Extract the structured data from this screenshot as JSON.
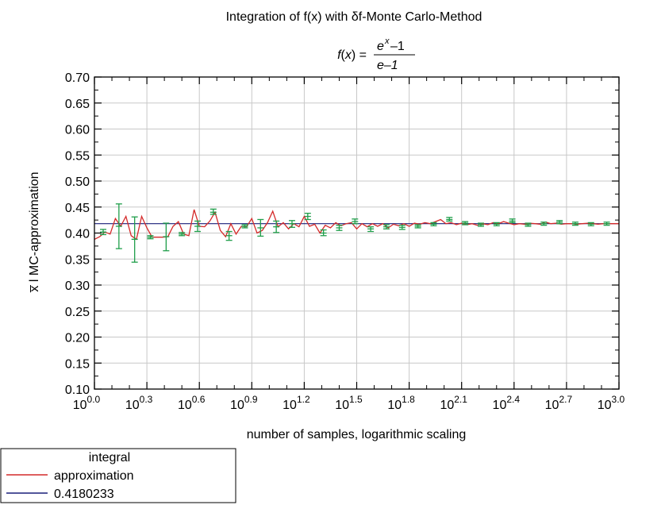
{
  "chart_data": {
    "type": "line",
    "title": "Integration of f(x) with δf-Monte Carlo-Method",
    "formula": {
      "lhs": "f(x) = ",
      "numerator_base": "e",
      "numerator_exp": "x",
      "numerator_tail": "–1",
      "denominator": "e–1"
    },
    "xlabel": "number of samples, logarithmic scaling",
    "ylabel": "x̅ l MC-approximation",
    "x_scale": "log10",
    "xlim": [
      1,
      1000
    ],
    "ylim": [
      0.1,
      0.7
    ],
    "x_tick_exponents": [
      "0.0",
      "0.3",
      "0.6",
      "0.9",
      "1.2",
      "1.5",
      "1.8",
      "2.1",
      "2.4",
      "2.7",
      "3.0"
    ],
    "x_tick_base": "10",
    "y_ticks": [
      "0.10",
      "0.15",
      "0.20",
      "0.25",
      "0.30",
      "0.35",
      "0.40",
      "0.45",
      "0.50",
      "0.55",
      "0.60",
      "0.65",
      "0.70"
    ],
    "grid": true,
    "legend_position": "below-left",
    "legend": {
      "title": "integral",
      "entries": [
        {
          "label": "approximation",
          "color": "#d42a2a"
        },
        {
          "label": "0.4180233",
          "color": "#1a1f7a"
        }
      ]
    },
    "reference_value": 0.4180233,
    "colors": {
      "approximation": "#d42a2a",
      "reference": "#1a1f7a",
      "error_bars": "#1f9e4a"
    },
    "series": [
      {
        "name": "approximation",
        "log10_x": [
          0.0,
          0.03,
          0.06,
          0.09,
          0.12,
          0.15,
          0.18,
          0.21,
          0.24,
          0.27,
          0.3,
          0.33,
          0.36,
          0.39,
          0.42,
          0.45,
          0.48,
          0.51,
          0.54,
          0.57,
          0.6,
          0.63,
          0.66,
          0.69,
          0.72,
          0.75,
          0.78,
          0.81,
          0.84,
          0.87,
          0.9,
          0.93,
          0.96,
          0.99,
          1.02,
          1.05,
          1.08,
          1.11,
          1.14,
          1.17,
          1.2,
          1.23,
          1.26,
          1.29,
          1.32,
          1.35,
          1.38,
          1.41,
          1.44,
          1.47,
          1.5,
          1.53,
          1.56,
          1.59,
          1.62,
          1.65,
          1.68,
          1.71,
          1.74,
          1.77,
          1.8,
          1.83,
          1.86,
          1.89,
          1.92,
          1.95,
          1.98,
          2.01,
          2.04,
          2.07,
          2.1,
          2.13,
          2.16,
          2.19,
          2.22,
          2.25,
          2.28,
          2.31,
          2.34,
          2.37,
          2.4,
          2.43,
          2.46,
          2.49,
          2.52,
          2.55,
          2.58,
          2.61,
          2.64,
          2.67,
          2.7,
          2.73,
          2.76,
          2.79,
          2.82,
          2.85,
          2.88,
          2.91,
          2.94,
          2.97,
          3.0
        ],
        "values": [
          0.388,
          0.393,
          0.402,
          0.398,
          0.428,
          0.413,
          0.432,
          0.395,
          0.388,
          0.432,
          0.41,
          0.392,
          0.392,
          0.392,
          0.393,
          0.413,
          0.422,
          0.398,
          0.395,
          0.445,
          0.413,
          0.412,
          0.423,
          0.44,
          0.405,
          0.393,
          0.418,
          0.398,
          0.413,
          0.412,
          0.428,
          0.4,
          0.405,
          0.42,
          0.442,
          0.412,
          0.42,
          0.408,
          0.418,
          0.412,
          0.432,
          0.413,
          0.417,
          0.4,
          0.415,
          0.41,
          0.42,
          0.414,
          0.418,
          0.42,
          0.408,
          0.418,
          0.412,
          0.418,
          0.413,
          0.418,
          0.41,
          0.417,
          0.414,
          0.418,
          0.413,
          0.419,
          0.417,
          0.42,
          0.418,
          0.422,
          0.426,
          0.418,
          0.42,
          0.416,
          0.419,
          0.416,
          0.418,
          0.415,
          0.418,
          0.416,
          0.42,
          0.418,
          0.422,
          0.419,
          0.416,
          0.418,
          0.417,
          0.419,
          0.418,
          0.417,
          0.421,
          0.418,
          0.419,
          0.417,
          0.418,
          0.418,
          0.417,
          0.418,
          0.419,
          0.418,
          0.417,
          0.418,
          0.418,
          0.418,
          0.418
        ]
      }
    ],
    "error_bars": [
      {
        "log10_x": 0.05,
        "y": 0.402,
        "lo": 0.397,
        "hi": 0.407
      },
      {
        "log10_x": 0.14,
        "y": 0.413,
        "lo": 0.37,
        "hi": 0.456
      },
      {
        "log10_x": 0.23,
        "y": 0.388,
        "lo": 0.344,
        "hi": 0.431
      },
      {
        "log10_x": 0.32,
        "y": 0.392,
        "lo": 0.389,
        "hi": 0.395
      },
      {
        "log10_x": 0.41,
        "y": 0.393,
        "lo": 0.366,
        "hi": 0.419
      },
      {
        "log10_x": 0.5,
        "y": 0.398,
        "lo": 0.395,
        "hi": 0.401
      },
      {
        "log10_x": 0.59,
        "y": 0.413,
        "lo": 0.403,
        "hi": 0.423
      },
      {
        "log10_x": 0.68,
        "y": 0.44,
        "lo": 0.436,
        "hi": 0.446
      },
      {
        "log10_x": 0.77,
        "y": 0.395,
        "lo": 0.386,
        "hi": 0.403
      },
      {
        "log10_x": 0.86,
        "y": 0.413,
        "lo": 0.41,
        "hi": 0.416
      },
      {
        "log10_x": 0.95,
        "y": 0.41,
        "lo": 0.394,
        "hi": 0.426
      },
      {
        "log10_x": 1.04,
        "y": 0.412,
        "lo": 0.401,
        "hi": 0.423
      },
      {
        "log10_x": 1.13,
        "y": 0.418,
        "lo": 0.411,
        "hi": 0.424
      },
      {
        "log10_x": 1.22,
        "y": 0.432,
        "lo": 0.426,
        "hi": 0.438
      },
      {
        "log10_x": 1.31,
        "y": 0.4,
        "lo": 0.395,
        "hi": 0.406
      },
      {
        "log10_x": 1.4,
        "y": 0.41,
        "lo": 0.405,
        "hi": 0.415
      },
      {
        "log10_x": 1.49,
        "y": 0.422,
        "lo": 0.418,
        "hi": 0.427
      },
      {
        "log10_x": 1.58,
        "y": 0.408,
        "lo": 0.403,
        "hi": 0.412
      },
      {
        "log10_x": 1.67,
        "y": 0.412,
        "lo": 0.408,
        "hi": 0.416
      },
      {
        "log10_x": 1.76,
        "y": 0.411,
        "lo": 0.407,
        "hi": 0.415
      },
      {
        "log10_x": 1.85,
        "y": 0.413,
        "lo": 0.41,
        "hi": 0.416
      },
      {
        "log10_x": 1.94,
        "y": 0.417,
        "lo": 0.414,
        "hi": 0.42
      },
      {
        "log10_x": 2.03,
        "y": 0.426,
        "lo": 0.423,
        "hi": 0.43
      },
      {
        "log10_x": 2.12,
        "y": 0.419,
        "lo": 0.416,
        "hi": 0.422
      },
      {
        "log10_x": 2.21,
        "y": 0.416,
        "lo": 0.413,
        "hi": 0.419
      },
      {
        "log10_x": 2.3,
        "y": 0.417,
        "lo": 0.414,
        "hi": 0.42
      },
      {
        "log10_x": 2.39,
        "y": 0.423,
        "lo": 0.42,
        "hi": 0.427
      },
      {
        "log10_x": 2.48,
        "y": 0.416,
        "lo": 0.413,
        "hi": 0.419
      },
      {
        "log10_x": 2.57,
        "y": 0.418,
        "lo": 0.415,
        "hi": 0.421
      },
      {
        "log10_x": 2.66,
        "y": 0.421,
        "lo": 0.418,
        "hi": 0.424
      },
      {
        "log10_x": 2.75,
        "y": 0.418,
        "lo": 0.415,
        "hi": 0.421
      },
      {
        "log10_x": 2.84,
        "y": 0.417,
        "lo": 0.414,
        "hi": 0.42
      },
      {
        "log10_x": 2.93,
        "y": 0.418,
        "lo": 0.415,
        "hi": 0.421
      }
    ]
  }
}
